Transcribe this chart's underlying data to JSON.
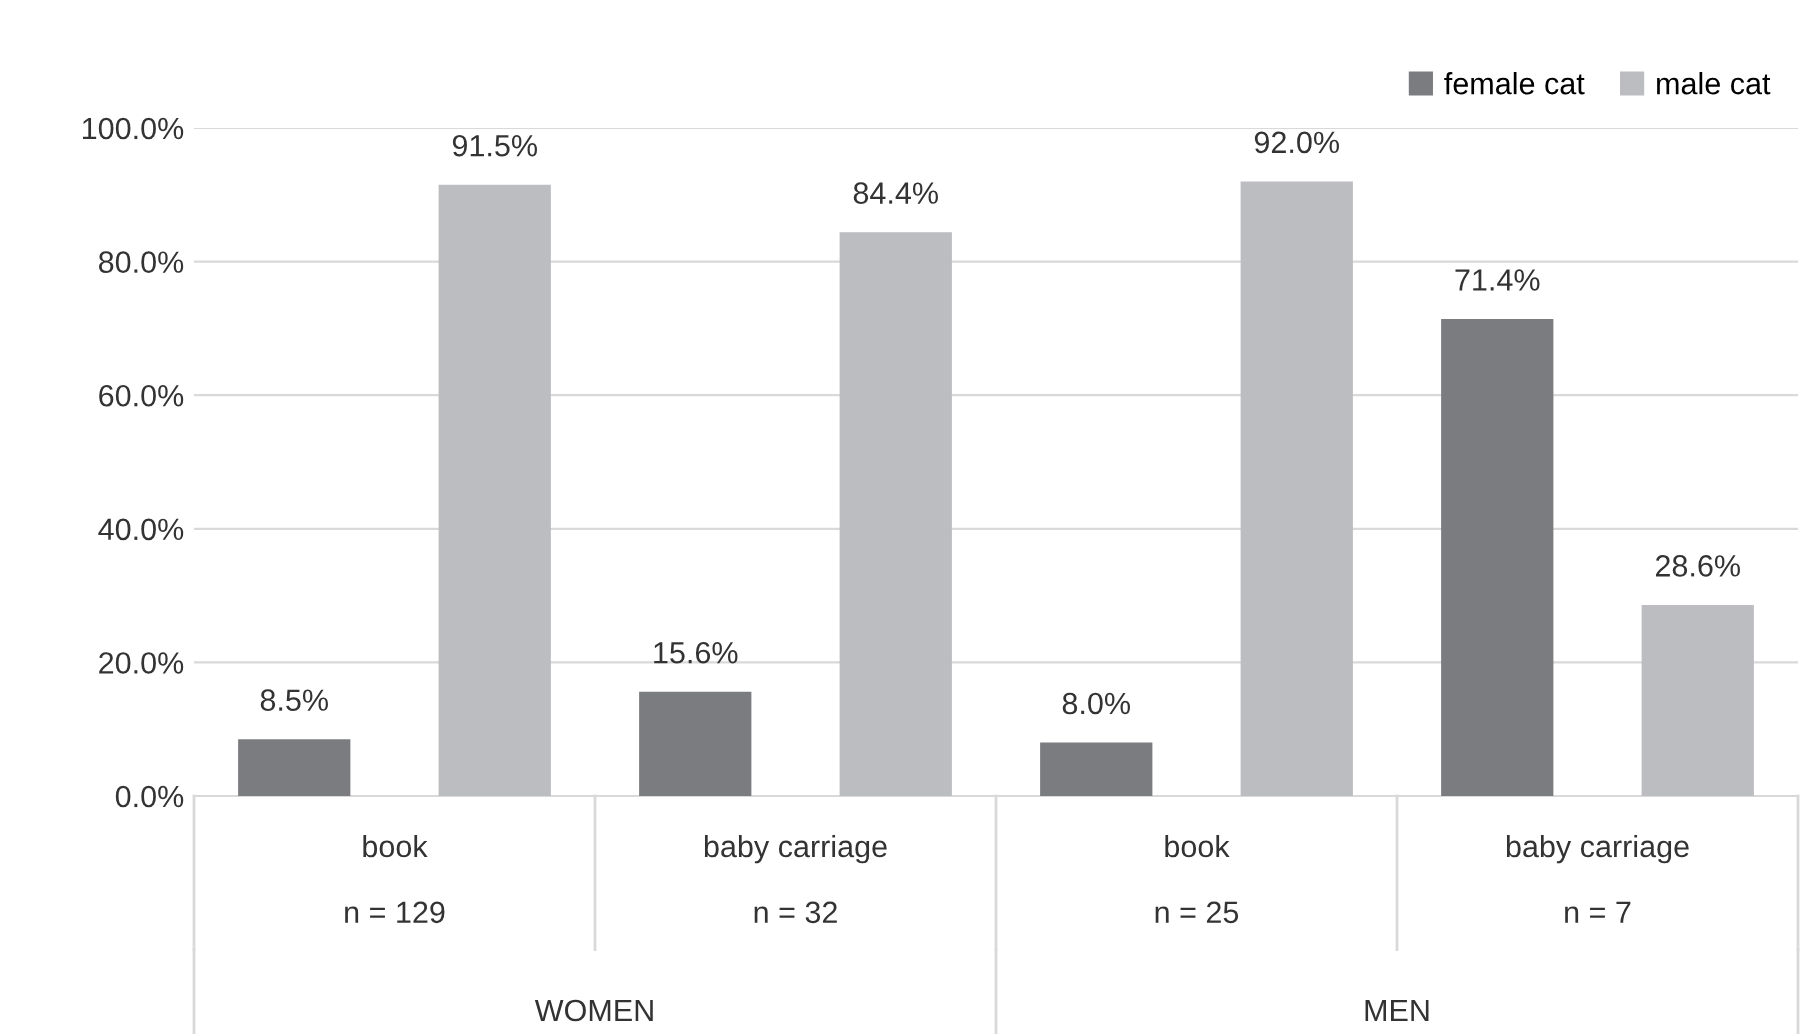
{
  "chart_data": {
    "type": "bar",
    "categories": [
      "book\n\nn = 129",
      "baby carriage\n\nn = 32",
      "book\n\nn = 25",
      "baby carriage\n\nn = 7"
    ],
    "series": [
      {
        "name": "female cat",
        "color": "#7b7c7f",
        "values": [
          8.5,
          15.6,
          8.0,
          71.4
        ],
        "value_labels": [
          "8.5%",
          "15.6%",
          "8.0%",
          "71.4%"
        ]
      },
      {
        "name": "male cat",
        "color": "#bcbdc0",
        "values": [
          91.5,
          84.4,
          92.0,
          28.6
        ],
        "value_labels": [
          "91.5%",
          "84.4%",
          "92.0%",
          "28.6%"
        ]
      }
    ],
    "ylim": [
      0,
      100
    ],
    "yticks": [
      {
        "value": 0,
        "label": "0.0%"
      },
      {
        "value": 20,
        "label": "20.0%"
      },
      {
        "value": 40,
        "label": "40.0%"
      },
      {
        "value": 60,
        "label": "60.0%"
      },
      {
        "value": 80,
        "label": "80.0%"
      },
      {
        "value": 100,
        "label": "100.0%"
      }
    ],
    "annotations": [
      "WOMEN",
      "MEN"
    ],
    "grid": "y",
    "legend": "top right"
  }
}
